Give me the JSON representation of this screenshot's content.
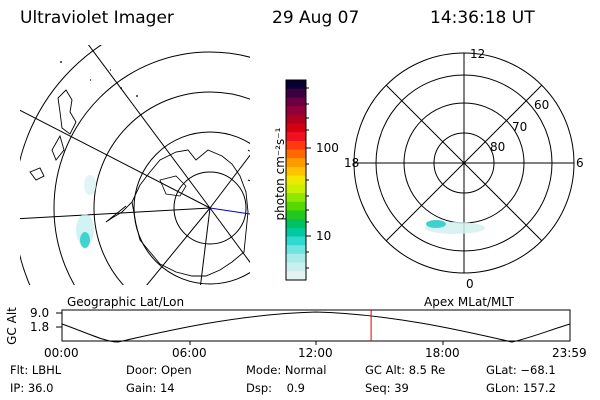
{
  "header": {
    "instrument": "Ultraviolet Imager",
    "date": "29 Aug 07",
    "time": "14:36:18 UT"
  },
  "geo_panel": {
    "label": "Geographic Lat/Lon"
  },
  "apex_panel": {
    "label": "Apex MLat/MLT",
    "mlt_labels": [
      "12",
      "18",
      "6",
      "0"
    ],
    "lat_labels": [
      "60",
      "70",
      "80"
    ]
  },
  "colorbar": {
    "unit_label": "photon cm⁻²s⁻¹",
    "ticks": [
      "100",
      "10"
    ],
    "colors": [
      "#0a0030",
      "#3a0040",
      "#6a0040",
      "#90003a",
      "#b0001e",
      "#d40010",
      "#f01020",
      "#ff3a10",
      "#ff6a00",
      "#ff9a00",
      "#ffc400",
      "#f0e800",
      "#c8f000",
      "#90e800",
      "#58d800",
      "#20c820",
      "#00c060",
      "#00c8a0",
      "#30d8d0",
      "#70e4e0",
      "#a8ecea",
      "#cceeee",
      "#e4f2f2"
    ]
  },
  "altitude_plot": {
    "ylabel": "GC Alt",
    "yticks": [
      "9.0",
      "1.8"
    ],
    "xticks": [
      "00:00",
      "06:00",
      "12:00",
      "18:00",
      "23:59"
    ],
    "current_time_hours": 14.605
  },
  "status": {
    "row1": [
      {
        "label": "Flt:",
        "value": "LBHL"
      },
      {
        "label": "Door:",
        "value": "Open"
      },
      {
        "label": "Mode:",
        "value": "Normal"
      },
      {
        "label": "GC Alt:",
        "value": "8.5 Re"
      },
      {
        "label": "GLat:",
        "value": "−68.1"
      }
    ],
    "row2": [
      {
        "label": "IP:",
        "value": "36.0"
      },
      {
        "label": "Gain:",
        "value": "14"
      },
      {
        "label": "Dsp:",
        "value": "0.9"
      },
      {
        "label": "Seq:",
        "value": "39"
      },
      {
        "label": "GLon:",
        "value": "157.2"
      }
    ]
  }
}
